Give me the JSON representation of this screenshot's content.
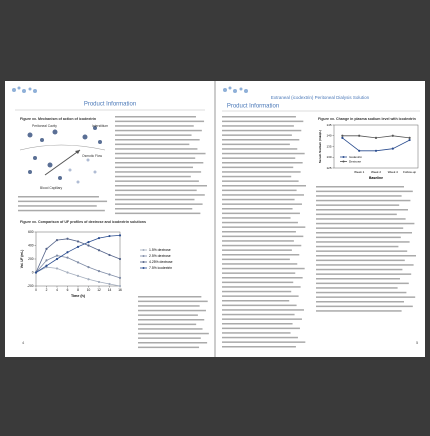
{
  "left_page": {
    "section": "Product Information",
    "page_number": "4",
    "figure_1": {
      "title": "Figure xx. Mechanism of action of icodextrin",
      "labels": [
        "Peritoneal Cavity",
        "Interstitium",
        "Osmotic Flow",
        "Blood Capillary"
      ]
    },
    "figure_2": {
      "chart_data": {
        "type": "line",
        "title": "Figure xx. Comparison of UF profiles of dextrose and icodextrin solutions",
        "x_label": "Time (h)",
        "y_label": "Vol. UF (mL)",
        "x": [
          0,
          2,
          4,
          6,
          8,
          10,
          12,
          14,
          16
        ],
        "series": [
          {
            "name": "1.5% dextrose",
            "color": "#a3adbd",
            "values": [
              0,
              80,
              60,
              0,
              -50,
              -100,
              -140,
              -170,
              -200
            ]
          },
          {
            "name": "2.5% dextrose",
            "color": "#7f8ca6",
            "values": [
              0,
              180,
              250,
              220,
              150,
              80,
              20,
              -30,
              -80
            ]
          },
          {
            "name": "4.25% dextrose",
            "color": "#55648a",
            "values": [
              0,
              350,
              480,
              500,
              460,
              400,
              330,
              260,
              200
            ]
          },
          {
            "name": "7.5% icodextrin",
            "color": "#2b4d8f",
            "values": [
              0,
              100,
              200,
              300,
              380,
              450,
              510,
              540,
              550
            ]
          }
        ],
        "xlim": [
          0,
          16
        ],
        "xticks": [
          0,
          2,
          4,
          6,
          8,
          10,
          12,
          14,
          16
        ],
        "ylim": [
          -200,
          600
        ],
        "yticks": [
          -200,
          0,
          200,
          400,
          600
        ]
      }
    }
  },
  "right_page": {
    "header": "Extraneal (icodextrin) Peritoneal Dialysis Solution",
    "section": "Product Information",
    "page_number": "5",
    "figure_3": {
      "chart_data": {
        "type": "line",
        "title": "Figure xx. Change in plasma sodium level with icodextrin",
        "x_label": "Baseline",
        "y_label": "Serum Sodium (mEq/L)",
        "categories": [
          null,
          "Week 1",
          "Week 2",
          "Week 4",
          "Follow-up"
        ],
        "series": [
          {
            "name": "Icodextrin",
            "color": "#2b4d8f",
            "values": [
              139,
              133,
              133,
              134,
              138
            ]
          },
          {
            "name": "Dextrose",
            "color": "#555555",
            "values": [
              140,
              140,
              139,
              140,
              139
            ]
          }
        ],
        "ylim": [
          125,
          145
        ],
        "yticks": [
          125,
          130,
          135,
          140,
          145
        ]
      }
    }
  }
}
